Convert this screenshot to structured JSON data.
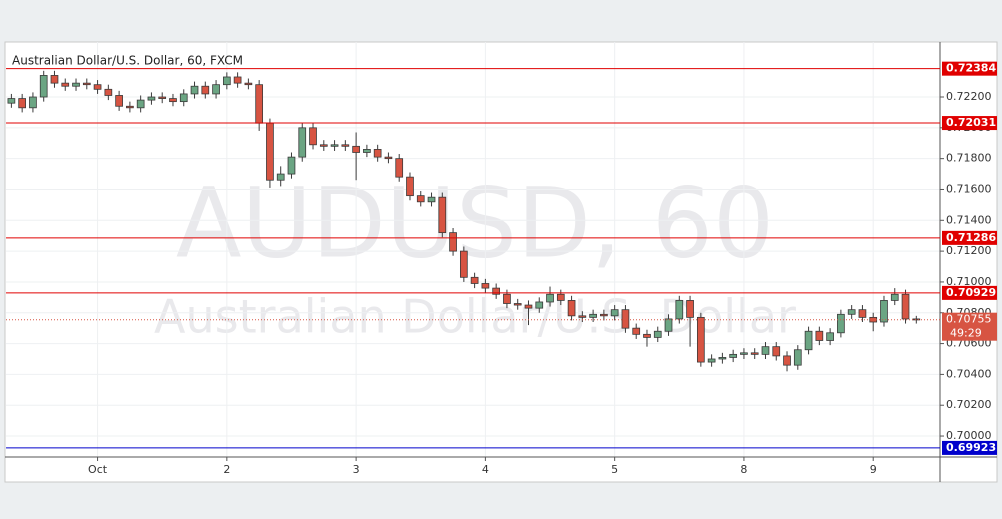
{
  "chart_data": {
    "type": "candlestick",
    "title": "Australian Dollar/U.S. Dollar, 60, FXCM",
    "watermark": [
      "AUDUSD, 60",
      "Australian Dollar/U.S. Dollar"
    ],
    "up_color": "#6ba583",
    "down_color": "#d75442",
    "open": [
      0.7216,
      0.7219,
      0.7213,
      0.722,
      0.7234,
      0.7229,
      0.7227,
      0.7229,
      0.7228,
      0.7225,
      0.7221,
      0.7214,
      0.7213,
      0.7218,
      0.722,
      0.7219,
      0.7217,
      0.7222,
      0.7227,
      0.7222,
      0.7228,
      0.7233,
      0.7229,
      0.7228,
      0.7203,
      0.7166,
      0.717,
      0.7181,
      0.72,
      0.7189,
      0.7188,
      0.7189,
      0.7188,
      0.7184,
      0.7186,
      0.7181,
      0.718,
      0.7168,
      0.7156,
      0.7152,
      0.7155,
      0.7132,
      0.712,
      0.7103,
      0.7099,
      0.7096,
      0.7092,
      0.7086,
      0.7085,
      0.7083,
      0.7087,
      0.7092,
      0.7088,
      0.7078,
      0.7077,
      0.7079,
      0.7078,
      0.7082,
      0.707,
      0.7066,
      0.7064,
      0.7068,
      0.7076,
      0.7088,
      0.7077,
      0.7048,
      0.705,
      0.7051,
      0.7053,
      0.7054,
      0.7053,
      0.7058,
      0.7052,
      0.7046,
      0.7056,
      0.7068,
      0.7062,
      0.7067,
      0.7079,
      0.7082,
      0.7077,
      0.7074,
      0.7088,
      0.7092,
      0.7076
    ],
    "high": [
      0.7222,
      0.7222,
      0.7223,
      0.7237,
      0.7237,
      0.7232,
      0.7232,
      0.7232,
      0.7231,
      0.7228,
      0.7224,
      0.7217,
      0.7221,
      0.7223,
      0.7223,
      0.7222,
      0.7225,
      0.723,
      0.723,
      0.7231,
      0.7236,
      0.7236,
      0.7232,
      0.7231,
      0.7206,
      0.7175,
      0.7184,
      0.7203,
      0.7203,
      0.7192,
      0.7192,
      0.7192,
      0.7197,
      0.7189,
      0.7189,
      0.7184,
      0.7183,
      0.7171,
      0.7159,
      0.7158,
      0.7158,
      0.7135,
      0.7123,
      0.7106,
      0.7102,
      0.7099,
      0.7095,
      0.7089,
      0.7088,
      0.709,
      0.7097,
      0.7095,
      0.7091,
      0.7081,
      0.7082,
      0.7082,
      0.7085,
      0.7085,
      0.7073,
      0.7069,
      0.7071,
      0.7079,
      0.7091,
      0.7091,
      0.708,
      0.7053,
      0.7054,
      0.7056,
      0.7057,
      0.7057,
      0.7061,
      0.7061,
      0.7055,
      0.7059,
      0.7071,
      0.7071,
      0.707,
      0.7082,
      0.7085,
      0.7085,
      0.708,
      0.7091,
      0.7096,
      0.7095,
      0.7078
    ],
    "low": [
      0.7213,
      0.721,
      0.721,
      0.7217,
      0.7226,
      0.7224,
      0.7224,
      0.7225,
      0.7222,
      0.7218,
      0.7211,
      0.721,
      0.721,
      0.7215,
      0.7216,
      0.7214,
      0.7214,
      0.7219,
      0.7219,
      0.7219,
      0.7225,
      0.7226,
      0.7225,
      0.7198,
      0.7161,
      0.7162,
      0.7167,
      0.7178,
      0.7186,
      0.7185,
      0.7185,
      0.7185,
      0.7166,
      0.7181,
      0.7178,
      0.7177,
      0.7165,
      0.7153,
      0.7149,
      0.7149,
      0.7129,
      0.7117,
      0.71,
      0.7096,
      0.7093,
      0.7089,
      0.7083,
      0.7082,
      0.7072,
      0.708,
      0.7084,
      0.7085,
      0.7075,
      0.7074,
      0.7074,
      0.7075,
      0.7075,
      0.7067,
      0.7063,
      0.7058,
      0.7061,
      0.7065,
      0.7073,
      0.7058,
      0.7045,
      0.7045,
      0.7047,
      0.7048,
      0.705,
      0.705,
      0.705,
      0.7049,
      0.7042,
      0.7043,
      0.7053,
      0.7059,
      0.7059,
      0.7064,
      0.7076,
      0.7074,
      0.7068,
      0.7071,
      0.7085,
      0.7073,
      0.7073
    ],
    "close": [
      0.7219,
      0.7213,
      0.722,
      0.7234,
      0.7229,
      0.7227,
      0.7229,
      0.7228,
      0.7225,
      0.7221,
      0.7214,
      0.7213,
      0.7218,
      0.722,
      0.7219,
      0.7217,
      0.7222,
      0.7227,
      0.7222,
      0.7228,
      0.7233,
      0.7229,
      0.7228,
      0.7203,
      0.7166,
      0.717,
      0.7181,
      0.72,
      0.7189,
      0.7188,
      0.7189,
      0.7188,
      0.7184,
      0.7186,
      0.7181,
      0.718,
      0.7168,
      0.7156,
      0.7152,
      0.7155,
      0.7132,
      0.712,
      0.7103,
      0.7099,
      0.7096,
      0.7092,
      0.7086,
      0.7085,
      0.7083,
      0.7087,
      0.7092,
      0.7088,
      0.7078,
      0.7077,
      0.7079,
      0.7078,
      0.7082,
      0.707,
      0.7066,
      0.7064,
      0.7068,
      0.7076,
      0.7088,
      0.7077,
      0.7048,
      0.705,
      0.7051,
      0.7053,
      0.7054,
      0.7053,
      0.7058,
      0.7052,
      0.7046,
      0.7056,
      0.7068,
      0.7062,
      0.7067,
      0.7079,
      0.7082,
      0.7077,
      0.7074,
      0.7088,
      0.7092,
      0.7076,
      0.70755
    ],
    "xlim": [
      -0.5,
      86.2
    ],
    "xticks": [
      {
        "value": 8,
        "label": "Oct"
      },
      {
        "value": 20,
        "label": "2"
      },
      {
        "value": 32,
        "label": "3"
      },
      {
        "value": 44,
        "label": "4"
      },
      {
        "value": 56,
        "label": "5"
      },
      {
        "value": 68,
        "label": "8"
      },
      {
        "value": 80,
        "label": "9"
      }
    ],
    "ylim": [
      0.69864,
      0.72557
    ],
    "yticks": [
      {
        "value": 0.7,
        "label": "0.70000"
      },
      {
        "value": 0.702,
        "label": "0.70200"
      },
      {
        "value": 0.704,
        "label": "0.70400"
      },
      {
        "value": 0.706,
        "label": "0.70600"
      },
      {
        "value": 0.708,
        "label": "0.70800"
      },
      {
        "value": 0.71,
        "label": "0.71000"
      },
      {
        "value": 0.712,
        "label": "0.71200"
      },
      {
        "value": 0.714,
        "label": "0.71400"
      },
      {
        "value": 0.716,
        "label": "0.71600"
      },
      {
        "value": 0.718,
        "label": "0.71800"
      },
      {
        "value": 0.72,
        "label": "0.72000"
      },
      {
        "value": 0.722,
        "label": "0.72200"
      }
    ],
    "grid": true,
    "levels": [
      {
        "value": 0.72384,
        "color": "#e00000"
      },
      {
        "value": 0.72031,
        "color": "#e00000"
      },
      {
        "value": 0.71286,
        "color": "#e00000"
      },
      {
        "value": 0.70929,
        "color": "#e00000"
      },
      {
        "value": 0.69923,
        "color": "#0000cc"
      }
    ],
    "last_price": {
      "value": 0.70755,
      "countdown": "49:29",
      "color": "#d75442"
    }
  }
}
